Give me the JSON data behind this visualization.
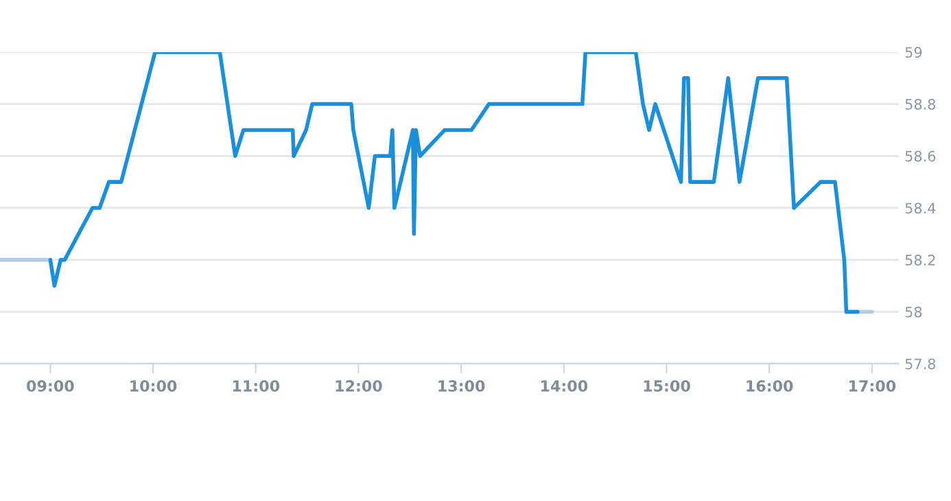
{
  "chart_data": {
    "type": "line",
    "xlim": [
      8.51,
      17.26
    ],
    "xticks": [
      {
        "value": 9,
        "label": "09:00"
      },
      {
        "value": 10,
        "label": "10:00"
      },
      {
        "value": 11,
        "label": "11:00"
      },
      {
        "value": 12,
        "label": "12:00"
      },
      {
        "value": 13,
        "label": "13:00"
      },
      {
        "value": 14,
        "label": "14:00"
      },
      {
        "value": 15,
        "label": "15:00"
      },
      {
        "value": 16,
        "label": "16:00"
      },
      {
        "value": 17,
        "label": "17:00"
      }
    ],
    "ylim": [
      57.8,
      59
    ],
    "yticks": [
      57.8,
      58,
      58.2,
      58.4,
      58.6,
      58.8,
      59
    ],
    "grid": "y",
    "legend": false,
    "marker": "none",
    "line_style": "solid",
    "series": [
      {
        "color": "#b7cbe0",
        "x": [
          8.51,
          9.0,
          12.0,
          16.86,
          17.0
        ],
        "values": [
          58.2,
          58.2,
          null,
          58.0,
          58.0
        ]
      },
      {
        "color": "#1a8fdc",
        "x": [
          9.0,
          9.04,
          9.1,
          9.14,
          9.41,
          9.48,
          9.57,
          9.69,
          10.02,
          10.65,
          10.8,
          10.88,
          11.36,
          11.37,
          11.49,
          11.55,
          11.93,
          11.95,
          12.1,
          12.16,
          12.31,
          12.33,
          12.35,
          12.53,
          12.54,
          12.56,
          12.6,
          12.84,
          13.1,
          13.27,
          14.18,
          14.21,
          14.7,
          14.77,
          14.83,
          14.89,
          15.14,
          15.17,
          15.21,
          15.23,
          15.46,
          15.6,
          15.71,
          15.89,
          16.17,
          16.24,
          16.5,
          16.64,
          16.73,
          16.75,
          16.86
        ],
        "values": [
          58.2,
          58.1,
          58.2,
          58.2,
          58.4,
          58.4,
          58.5,
          58.5,
          59.0,
          59.0,
          58.6,
          58.7,
          58.7,
          58.6,
          58.7,
          58.8,
          58.8,
          58.7,
          58.4,
          58.6,
          58.6,
          58.7,
          58.4,
          58.7,
          58.3,
          58.7,
          58.6,
          58.7,
          58.7,
          58.8,
          58.8,
          59.0,
          59.0,
          58.8,
          58.7,
          58.8,
          58.5,
          58.9,
          58.9,
          58.5,
          58.5,
          58.9,
          58.5,
          58.9,
          58.9,
          58.4,
          58.5,
          58.5,
          58.2,
          58.0,
          58.0
        ]
      }
    ]
  }
}
